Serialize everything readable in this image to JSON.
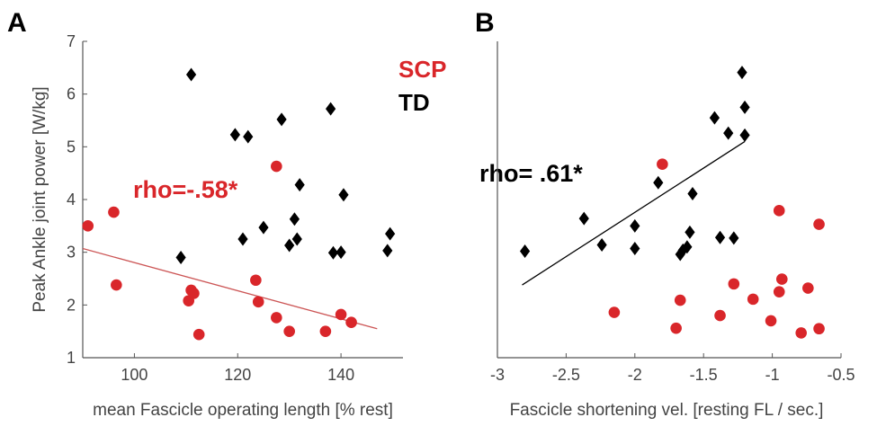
{
  "colors": {
    "scp": "#d9262a",
    "td": "#000000",
    "fit_a": "#cc5555",
    "fit_b": "#000000",
    "axis": "#555555"
  },
  "chart_data": [
    {
      "panel_label": "A",
      "type": "scatter",
      "xlabel": "mean Fascicle operating length [% rest]",
      "ylabel": "Peak Ankle joint power [W/kg]",
      "xlim": [
        90,
        152
      ],
      "ylim": [
        1,
        7
      ],
      "xticks": [
        100,
        120,
        140
      ],
      "xtick_labels": [
        "100",
        "120",
        "140"
      ],
      "yticks": [
        1,
        2,
        3,
        4,
        5,
        6,
        7
      ],
      "ytick_labels": [
        "1",
        "2",
        "3",
        "4",
        "5",
        "6",
        "7"
      ],
      "legend": [
        {
          "label": "SCP",
          "color": "#d9262a"
        },
        {
          "label": "TD",
          "color": "#000000"
        }
      ],
      "annotation": {
        "text": "rho=-.58*",
        "color": "#d9262a"
      },
      "series": [
        {
          "name": "SCP",
          "marker": "circle",
          "color": "#d9262a",
          "x": [
            91,
            96,
            96.5,
            110.5,
            111,
            111.5,
            112.5,
            123.5,
            124,
            127.5,
            127.5,
            130,
            137,
            140,
            142
          ],
          "y": [
            3.5,
            3.76,
            2.38,
            2.08,
            2.28,
            2.22,
            1.44,
            2.47,
            2.06,
            1.76,
            4.63,
            1.5,
            1.5,
            1.82,
            1.67
          ]
        },
        {
          "name": "TD",
          "marker": "diamond",
          "color": "#000000",
          "x": [
            109,
            111,
            119.5,
            122,
            121,
            125,
            128.5,
            130,
            131,
            131.5,
            132,
            138,
            138.5,
            140,
            140.5,
            149,
            149.5
          ],
          "y": [
            2.9,
            6.37,
            5.23,
            5.19,
            3.25,
            3.47,
            5.52,
            3.13,
            3.63,
            3.25,
            4.28,
            5.72,
            2.99,
            3.0,
            4.09,
            3.03,
            3.35
          ]
        }
      ],
      "fit_line": {
        "x": [
          90,
          147
        ],
        "y": [
          3.07,
          1.55
        ]
      }
    },
    {
      "panel_label": "B",
      "type": "scatter",
      "xlabel": "Fascicle shortening vel. [resting FL / sec.]",
      "ylabel": "",
      "xlim": [
        -3,
        -0.5
      ],
      "ylim": [
        1,
        7
      ],
      "xticks": [
        -3,
        -2.5,
        -2,
        -1.5,
        -1,
        -0.5
      ],
      "xtick_labels": [
        "-3",
        "-2.5",
        "-2",
        "-1.5",
        "-1",
        "-0.5"
      ],
      "yticks": [],
      "ytick_labels": [],
      "annotation": {
        "text": "rho= .61*",
        "color": "#000000"
      },
      "series": [
        {
          "name": "SCP",
          "marker": "circle",
          "color": "#d9262a",
          "x": [
            -2.15,
            -1.8,
            -1.7,
            -1.67,
            -1.38,
            -1.28,
            -1.14,
            -1.01,
            -0.95,
            -0.95,
            -0.93,
            -0.79,
            -0.74,
            -0.66,
            -0.66
          ],
          "y": [
            1.86,
            4.67,
            1.56,
            2.09,
            1.8,
            2.4,
            2.11,
            1.7,
            2.25,
            3.79,
            2.49,
            1.47,
            2.32,
            3.53,
            1.55
          ]
        },
        {
          "name": "TD",
          "marker": "diamond",
          "color": "#000000",
          "x": [
            -2.8,
            -2.37,
            -2.24,
            -2.0,
            -2.0,
            -1.83,
            -1.67,
            -1.65,
            -1.62,
            -1.6,
            -1.58,
            -1.42,
            -1.38,
            -1.32,
            -1.28,
            -1.22,
            -1.2,
            -1.2
          ],
          "y": [
            3.02,
            3.64,
            3.14,
            3.5,
            3.07,
            4.32,
            2.96,
            3.04,
            3.1,
            3.38,
            4.11,
            5.55,
            3.28,
            5.26,
            3.27,
            6.41,
            5.75,
            5.22
          ]
        }
      ],
      "fit_line": {
        "x": [
          -2.82,
          -1.2
        ],
        "y": [
          2.38,
          5.1
        ]
      }
    }
  ]
}
